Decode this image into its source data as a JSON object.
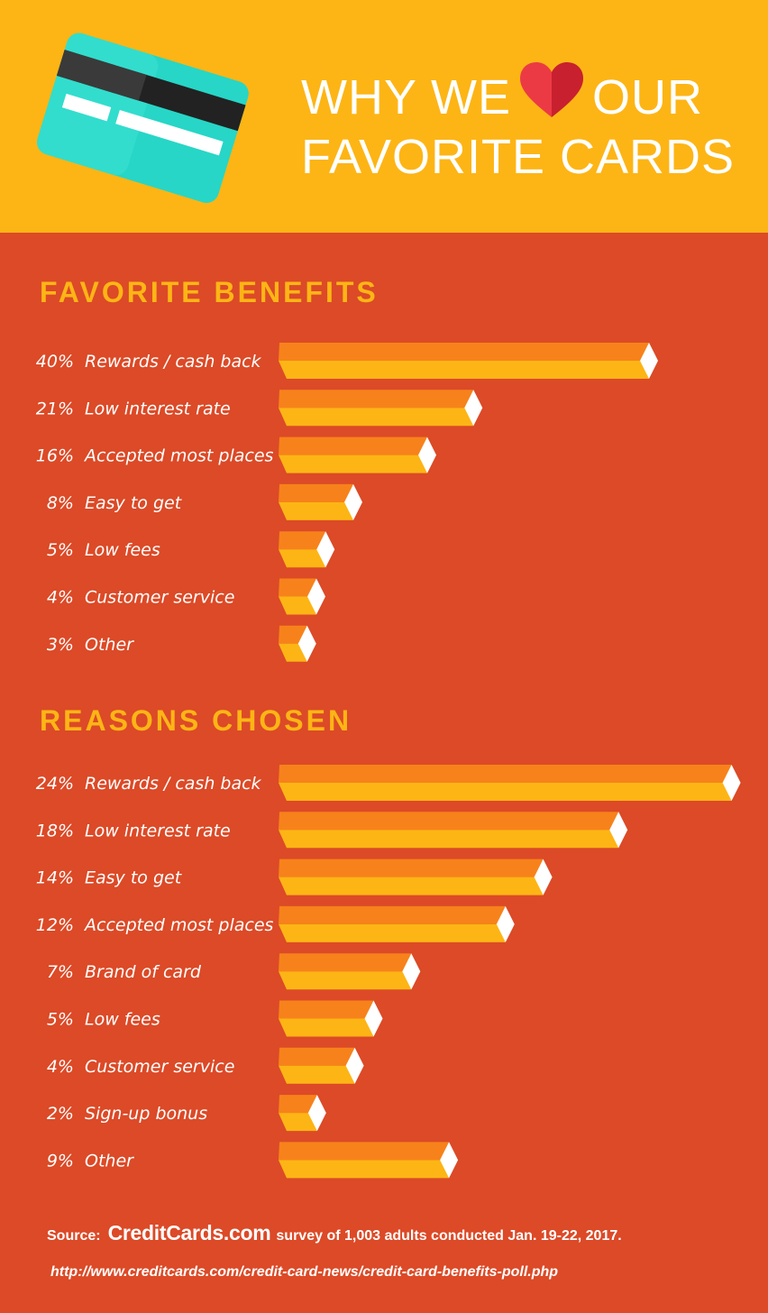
{
  "header": {
    "title_line1_pre": "WHY WE",
    "title_line1_post": "OUR",
    "title_line2": "FAVORITE CARDS",
    "heart_icon": "heart-icon",
    "card_icon": "credit-card-icon"
  },
  "colors": {
    "header_bg": "#fdb515",
    "body_bg": "#dc4a27",
    "bar_top": "#f7821b",
    "bar_bottom": "#fdb515",
    "bar_tip": "#ffffff",
    "heart": "#e8283a"
  },
  "chart_data": [
    {
      "type": "bar",
      "title": "FAVORITE BENEFITS",
      "categories": [
        "Rewards / cash back",
        "Low interest rate",
        "Accepted most places",
        "Easy to get",
        "Low fees",
        "Customer service",
        "Other"
      ],
      "values": [
        40,
        21,
        16,
        8,
        5,
        4,
        3
      ],
      "labels": [
        "40%",
        "21%",
        "16%",
        "8%",
        "5%",
        "4%",
        "3%"
      ]
    },
    {
      "type": "bar",
      "title": "REASONS CHOSEN",
      "categories": [
        "Rewards / cash back",
        "Low interest rate",
        "Easy to get",
        "Accepted most places",
        "Brand of card",
        "Low fees",
        "Customer service",
        "Sign-up bonus",
        "Other"
      ],
      "values": [
        24,
        18,
        14,
        12,
        7,
        5,
        4,
        2,
        9
      ],
      "labels": [
        "24%",
        "18%",
        "14%",
        "12%",
        "7%",
        "5%",
        "4%",
        "2%",
        "9%"
      ]
    }
  ],
  "footer": {
    "source_label": "Source:",
    "brand": "CreditCards.com",
    "source_text": "survey of 1,003 adults conducted Jan. 19-22, 2017.",
    "url": "http://www.creditcards.com/credit-card-news/credit-card-benefits-poll.php"
  }
}
